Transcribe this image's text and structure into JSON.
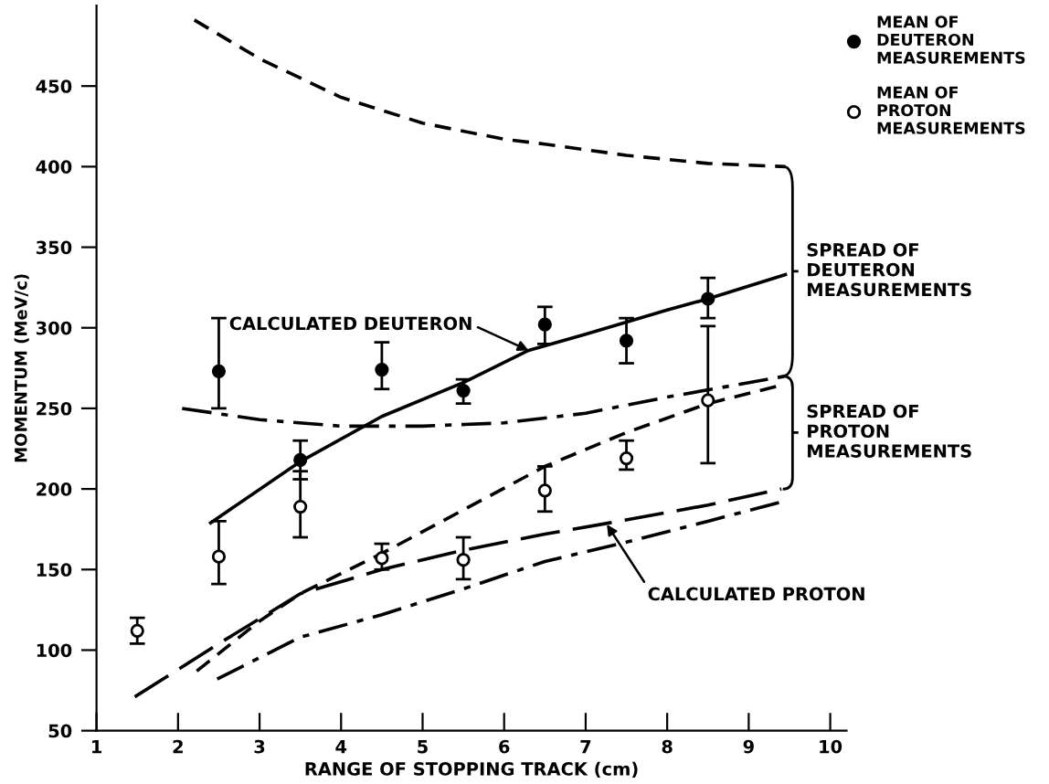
{
  "chart_data": {
    "type": "line",
    "xlabel": "RANGE OF STOPPING TRACK (cm)",
    "ylabel": "MOMENTUM (MeV/c)",
    "xlim": [
      1,
      10.2
    ],
    "xticks": [
      1,
      2,
      3,
      4,
      5,
      6,
      7,
      8,
      9,
      10
    ],
    "ylim": [
      50,
      500
    ],
    "yticks": [
      50,
      100,
      150,
      200,
      250,
      300,
      350,
      400,
      450
    ],
    "legend": "top right",
    "series": [
      {
        "name": "MEAN OF\nDEUTERON\nMEASUREMENTS",
        "type": "scatter",
        "marker": "circle",
        "color": "#000000",
        "x": [
          2.5,
          3.5,
          4.5,
          5.5,
          6.5,
          7.5,
          8.5
        ],
        "values": [
          273,
          218,
          274,
          261,
          302,
          292,
          318
        ],
        "errors": [
          [
            250,
            306
          ],
          [
            206,
            230
          ],
          [
            262,
            291
          ],
          [
            253,
            268
          ],
          [
            290,
            313
          ],
          [
            278,
            306
          ],
          [
            306,
            331
          ]
        ]
      },
      {
        "name": "MEAN OF\nPROTON\nMEASUREMENTS",
        "type": "scatter",
        "marker": "circle",
        "color": "#000000",
        "x": [
          1.5,
          2.5,
          3.5,
          4.5,
          5.5,
          6.5,
          7.5,
          8.5
        ],
        "values": [
          112,
          158,
          189,
          157,
          156,
          199,
          219,
          255
        ],
        "errors": [
          [
            104,
            120
          ],
          [
            141,
            180
          ],
          [
            170,
            211
          ],
          [
            150,
            166
          ],
          [
            144,
            170
          ],
          [
            186,
            214
          ],
          [
            212,
            230
          ],
          [
            216,
            301
          ]
        ]
      },
      {
        "line_style": "dashed",
        "color": "#000000",
        "x": [
          2.2,
          3,
          4,
          5,
          6,
          6.5,
          7.5,
          8.5,
          9.45
        ],
        "values": [
          491,
          467,
          443,
          427,
          417,
          414,
          407,
          402,
          400
        ]
      },
      {
        "line_style": "solid",
        "color": "#000000",
        "x": [
          2.4,
          3.5,
          4.5,
          5.5,
          6.3,
          7,
          8,
          8.5,
          9.45
        ],
        "values": [
          179,
          217,
          245,
          266,
          286,
          296,
          311,
          318,
          333
        ]
      },
      {
        "line_style": "dashdot",
        "color": "#000000",
        "x": [
          2.05,
          3,
          4,
          5,
          6,
          7,
          8,
          9.45
        ],
        "values": [
          250,
          243,
          239,
          239,
          241,
          247,
          257,
          270
        ]
      },
      {
        "line_style": "dashed",
        "color": "#000000",
        "x": [
          2.23,
          3,
          3.5,
          4.5,
          5.5,
          6.5,
          7.5,
          8.5,
          9.45
        ],
        "values": [
          87,
          118,
          135,
          160,
          187,
          214,
          235,
          253,
          265
        ]
      },
      {
        "line_style": "longdash",
        "color": "#000000",
        "x": [
          1.47,
          2.5,
          3.5,
          4.5,
          5.5,
          6.5,
          7.3,
          8.5,
          9.4
        ],
        "values": [
          71,
          104,
          135,
          150,
          162,
          172,
          179,
          190,
          200
        ]
      },
      {
        "line_style": "dashdot",
        "color": "#000000",
        "x": [
          2.48,
          3.5,
          4.5,
          5.5,
          6.5,
          7.5,
          8.5,
          9.4
        ],
        "values": [
          82,
          108,
          122,
          138,
          155,
          167,
          180,
          192
        ]
      }
    ],
    "annotations": [
      {
        "text": "CALCULATED DEUTERON",
        "x": 6.3,
        "y": 286
      },
      {
        "text": "CALCULATED PROTON",
        "x": 7.26,
        "y": 178
      },
      "SPREAD OF\nDEUTERON\nMEASUREMENTS",
      "SPREAD OF\nPROTON\nMEASUREMENTS"
    ]
  }
}
